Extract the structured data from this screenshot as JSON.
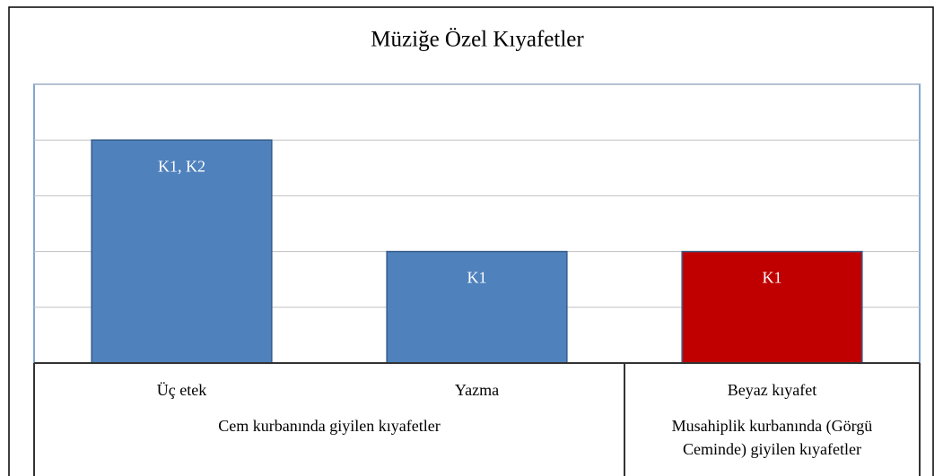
{
  "chart_data": {
    "type": "bar",
    "title": "Müziğe Özel Kıyafetler",
    "category_groups": [
      {
        "name": "Cem kurbanında giyilen kıyafetler",
        "categories": [
          "Üç etek",
          "Yazma"
        ]
      },
      {
        "name": "Musahiplik kurbanında (Görgü Ceminde) giyilen kıyafetler",
        "categories": [
          "Beyaz kıyafet"
        ]
      }
    ],
    "values": [
      2,
      1,
      1
    ],
    "value_labels": [
      "K1, K2",
      "K1",
      "K1"
    ],
    "colors": [
      "#4f81bd",
      "#4f81bd",
      "#c00000"
    ],
    "ylim": [
      0,
      2.5
    ],
    "yticks": [
      0,
      0.5,
      1,
      1.5,
      2,
      2.5
    ],
    "grid": true
  }
}
